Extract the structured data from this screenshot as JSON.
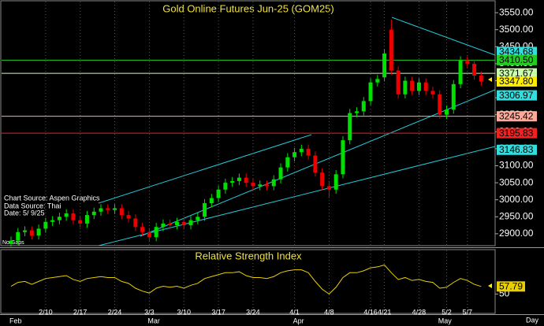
{
  "chart_data": [
    {
      "type": "candlestick",
      "title": "Gold Online Futures Jun-25 (GOM25)",
      "annotations": [
        "Chart Source: Aspen Graphics",
        "Data Source: Thai",
        "Date:  5/ 9/25"
      ],
      "note": "No Gaps",
      "x_label": "Day",
      "categories": [
        null,
        null,
        null,
        null,
        null,
        "2/10",
        null,
        null,
        null,
        null,
        "2/17",
        null,
        null,
        null,
        null,
        "2/24",
        null,
        null,
        null,
        null,
        "3/3",
        null,
        null,
        null,
        null,
        "3/10",
        null,
        null,
        null,
        null,
        "3/17",
        null,
        null,
        null,
        null,
        "3/24",
        null,
        null,
        null,
        null,
        null,
        "4/1",
        null,
        null,
        null,
        null,
        "4/8",
        null,
        null,
        null,
        null,
        null,
        "4/16",
        null,
        "4/21",
        null,
        null,
        null,
        null,
        "4/28",
        null,
        null,
        null,
        "5/2",
        null,
        null,
        "5/7",
        null,
        null
      ],
      "months": [
        "Feb",
        null,
        null,
        null,
        null,
        null,
        null,
        null,
        null,
        null,
        null,
        null,
        null,
        null,
        null,
        null,
        null,
        null,
        null,
        null,
        "Mar",
        null,
        null,
        null,
        null,
        null,
        null,
        null,
        null,
        null,
        null,
        null,
        null,
        null,
        null,
        null,
        null,
        null,
        null,
        null,
        null,
        "Apr",
        null,
        null,
        null,
        null,
        null,
        null,
        null,
        null,
        null,
        null,
        null,
        null,
        null,
        null,
        null,
        null,
        null,
        null,
        null,
        null,
        "May",
        null,
        null,
        null,
        null,
        null,
        null
      ],
      "open": [
        2870,
        2880,
        2905,
        2910,
        2895,
        2915,
        2935,
        2940,
        2950,
        2960,
        2940,
        2930,
        2955,
        2965,
        2975,
        2970,
        2975,
        2955,
        2945,
        2920,
        2905,
        2890,
        2920,
        2930,
        2925,
        2935,
        2925,
        2940,
        2950,
        2990,
        3005,
        3030,
        3050,
        3055,
        3065,
        3050,
        3040,
        3045,
        3040,
        3060,
        3095,
        3125,
        3140,
        3150,
        3130,
        3080,
        3040,
        3030,
        3075,
        3175,
        3255,
        3260,
        3290,
        3345,
        3360,
        3500,
        3380,
        3310,
        3350,
        3320,
        3345,
        3320,
        3310,
        3250,
        3265,
        3340,
        3410,
        3400,
        3365
      ],
      "high": [
        2892,
        2917,
        2922,
        2922,
        2927,
        2947,
        2952,
        2962,
        2972,
        2972,
        2952,
        2967,
        2977,
        2987,
        2987,
        2987,
        2987,
        2967,
        2957,
        2932,
        2917,
        2932,
        2942,
        2942,
        2947,
        2947,
        2952,
        2962,
        3002,
        3017,
        3042,
        3062,
        3067,
        3077,
        3077,
        3062,
        3057,
        3057,
        3072,
        3107,
        3137,
        3152,
        3162,
        3162,
        3142,
        3092,
        3052,
        3087,
        3187,
        3267,
        3272,
        3302,
        3357,
        3367,
        3442,
        3530,
        3392,
        3362,
        3362,
        3357,
        3357,
        3332,
        3322,
        3277,
        3352,
        3422,
        3422,
        3412,
        3377
      ],
      "low": [
        2862,
        2868,
        2893,
        2883,
        2883,
        2903,
        2923,
        2928,
        2938,
        2928,
        2918,
        2918,
        2943,
        2953,
        2958,
        2958,
        2943,
        2933,
        2908,
        2893,
        2878,
        2878,
        2908,
        2913,
        2913,
        2913,
        2913,
        2928,
        2938,
        2978,
        2993,
        3018,
        3038,
        3043,
        3038,
        3028,
        3028,
        3028,
        3028,
        3048,
        3083,
        3113,
        3128,
        3118,
        3068,
        3028,
        3005,
        3018,
        3063,
        3163,
        3243,
        3248,
        3278,
        3333,
        3348,
        3368,
        3298,
        3298,
        3308,
        3308,
        3308,
        3298,
        3238,
        3238,
        3253,
        3328,
        3388,
        3353,
        3335
      ],
      "close": [
        2880,
        2905,
        2910,
        2895,
        2915,
        2935,
        2940,
        2950,
        2960,
        2940,
        2930,
        2955,
        2965,
        2975,
        2970,
        2975,
        2955,
        2945,
        2920,
        2905,
        2890,
        2920,
        2930,
        2925,
        2935,
        2925,
        2940,
        2950,
        2990,
        3005,
        3030,
        3050,
        3055,
        3065,
        3050,
        3040,
        3045,
        3040,
        3060,
        3095,
        3125,
        3140,
        3150,
        3130,
        3080,
        3040,
        3030,
        3075,
        3175,
        3255,
        3260,
        3290,
        3345,
        3355,
        3430,
        3380,
        3310,
        3350,
        3320,
        3345,
        3320,
        3310,
        3250,
        3265,
        3340,
        3410,
        3400,
        3365,
        3347.8
      ],
      "up_color": "#00e000",
      "down_color": "#ee0000",
      "ylim": [
        2865,
        3585
      ],
      "yticks": [
        {
          "value": 2900,
          "label": "2900.00"
        },
        {
          "value": 2950,
          "label": "2950.00"
        },
        {
          "value": 3000,
          "label": "3000.00"
        },
        {
          "value": 3050,
          "label": "3050.00"
        },
        {
          "value": 3100,
          "label": "3100.00"
        },
        {
          "value": 3150,
          "label": "3150.00"
        },
        {
          "value": 3200,
          "label": "3200.00"
        },
        {
          "value": 3250,
          "label": "3250.00"
        },
        {
          "value": 3300,
          "label": "3300.00"
        },
        {
          "value": 3350,
          "label": "3350.00"
        },
        {
          "value": 3400,
          "label": "3400.00"
        },
        {
          "value": 3450,
          "label": "3450.00"
        },
        {
          "value": 3500,
          "label": "3500.00"
        },
        {
          "value": 3550,
          "label": "3550.00"
        }
      ],
      "levels": [
        {
          "value": 3434.68,
          "label": "3434.68",
          "color": "#33dddd",
          "line": false
        },
        {
          "value": 3410.5,
          "label": "3410.50",
          "color": "#22cc22",
          "line": true
        },
        {
          "value": 3371.67,
          "label": "3371.67",
          "color": "#ccffaa",
          "line": true
        },
        {
          "value": 3347.8,
          "label": "3347.80",
          "color": "#ffee00",
          "line": false
        },
        {
          "value": 3306.97,
          "label": "3306.97",
          "color": "#33dddd",
          "line": false
        },
        {
          "value": 3245.42,
          "label": "3245.42",
          "color": "#ffaa99",
          "line": true
        },
        {
          "value": 3195.83,
          "label": "3195.83",
          "color": "#ee2222",
          "line": true
        },
        {
          "value": 3146.83,
          "label": "3146.83",
          "color": "#33dddd",
          "line": false
        }
      ],
      "grid": "x"
    },
    {
      "type": "line",
      "title": "Relative Strength Index",
      "color": "#e8d000",
      "values": [
        58,
        62,
        63,
        60,
        63,
        66,
        67,
        68,
        69,
        65,
        63,
        66,
        67,
        68,
        67,
        67,
        63,
        61,
        56,
        53,
        51,
        56,
        58,
        57,
        58,
        56,
        59,
        61,
        66,
        68,
        70,
        72,
        72,
        73,
        69,
        67,
        67,
        66,
        68,
        72,
        74,
        75,
        75,
        72,
        63,
        55,
        50,
        57,
        67,
        72,
        72,
        74,
        77,
        78,
        80,
        72,
        65,
        67,
        64,
        65,
        63,
        62,
        56,
        57,
        62,
        66,
        64,
        60,
        57.79
      ],
      "ylim": [
        30,
        95
      ],
      "yticks": [
        50
      ]
    }
  ]
}
